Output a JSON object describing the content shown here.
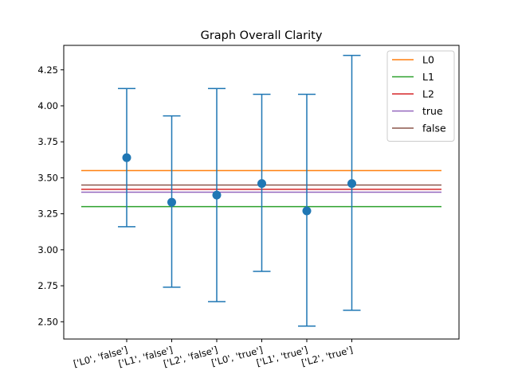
{
  "chart_data": {
    "type": "scatter",
    "title": "Graph Overall Clarity",
    "xlabel": "",
    "ylabel": "",
    "categories": [
      "['L0', 'false']",
      "['L1', 'false']",
      "['L2', 'false']",
      "['L0', 'true']",
      "['L1', 'true']",
      "['L2', 'true']"
    ],
    "points": [
      {
        "mean": 3.64,
        "low": 3.16,
        "high": 4.12
      },
      {
        "mean": 3.33,
        "low": 2.74,
        "high": 3.93
      },
      {
        "mean": 3.38,
        "low": 2.64,
        "high": 4.12
      },
      {
        "mean": 3.46,
        "low": 2.85,
        "high": 4.08
      },
      {
        "mean": 3.27,
        "low": 2.47,
        "high": 4.08
      },
      {
        "mean": 3.46,
        "low": 2.58,
        "high": 4.35
      }
    ],
    "point_color": "#1f77b4",
    "hlines": [
      {
        "name": "L0",
        "value": 3.55,
        "color": "#ff7f0e"
      },
      {
        "name": "L1",
        "value": 3.3,
        "color": "#2ca02c"
      },
      {
        "name": "L2",
        "value": 3.42,
        "color": "#d62728"
      },
      {
        "name": "true",
        "value": 3.4,
        "color": "#9467bd"
      },
      {
        "name": "false",
        "value": 3.45,
        "color": "#8c564b"
      }
    ],
    "ylim": [
      2.38,
      4.42
    ],
    "yticks": [
      "2.50",
      "2.75",
      "3.00",
      "3.25",
      "3.50",
      "3.75",
      "4.00",
      "4.25"
    ],
    "grid": false,
    "legend_position": "top-right"
  }
}
